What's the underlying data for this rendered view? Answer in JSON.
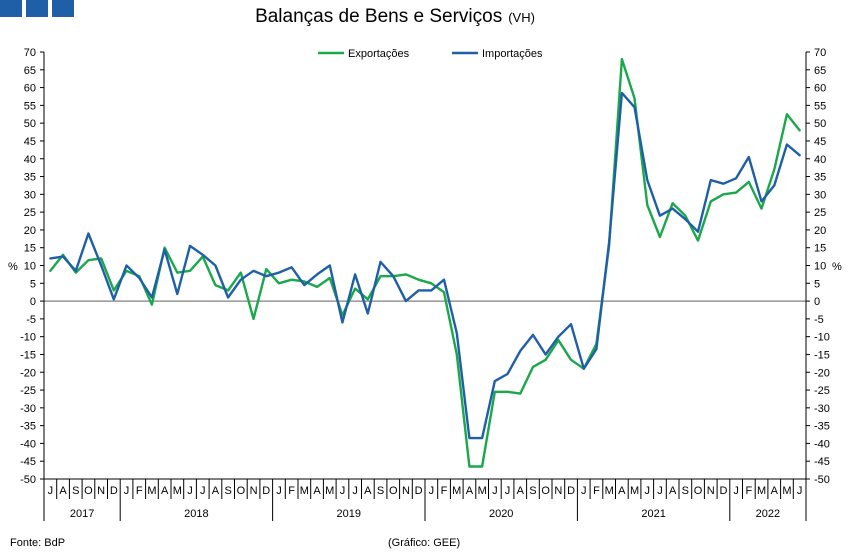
{
  "title": "Balanças de Bens e Serviços",
  "subtitle": "(VH)",
  "footer": {
    "source": "Fonte: BdP",
    "credit": "(Gráfico: GEE)"
  },
  "chart_data": {
    "type": "line",
    "ylabel_left": "%",
    "ylabel_right": "%",
    "ylim": [
      -50,
      70
    ],
    "ytick_step": 5,
    "grid": false,
    "legend_position": "top-center",
    "month_labels": [
      "J",
      "A",
      "S",
      "O",
      "N",
      "D",
      "J",
      "F",
      "M",
      "A",
      "M",
      "J",
      "J",
      "A",
      "S",
      "O",
      "N",
      "D",
      "J",
      "F",
      "M",
      "A",
      "M",
      "J",
      "J",
      "A",
      "S",
      "O",
      "N",
      "D",
      "J",
      "F",
      "M",
      "A",
      "M",
      "J",
      "J",
      "A",
      "S",
      "O",
      "N",
      "D",
      "J",
      "F",
      "M",
      "A",
      "M",
      "J",
      "J",
      "A",
      "S",
      "O",
      "N",
      "D",
      "J",
      "F",
      "M",
      "A",
      "M",
      "J"
    ],
    "years": [
      {
        "label": "2017",
        "start": 0,
        "count": 6
      },
      {
        "label": "2018",
        "start": 6,
        "count": 12
      },
      {
        "label": "2019",
        "start": 18,
        "count": 12
      },
      {
        "label": "2020",
        "start": 30,
        "count": 12
      },
      {
        "label": "2021",
        "start": 42,
        "count": 12
      },
      {
        "label": "2022",
        "start": 54,
        "count": 6
      }
    ],
    "series": [
      {
        "name": "Exportações",
        "color": "#1aa84a",
        "values": [
          8.5,
          13,
          8,
          11.5,
          12,
          3,
          8.5,
          7,
          -1,
          15,
          8,
          8.5,
          12.5,
          4.5,
          3,
          8,
          -5,
          9,
          5,
          6,
          5.5,
          4,
          6.5,
          -4,
          3.5,
          0.5,
          7,
          7,
          7.5,
          6,
          5,
          2.5,
          -15,
          -46.5,
          -46.5,
          -25.5,
          -25.5,
          -26,
          -18.5,
          -16.5,
          -11,
          -16.5,
          -19,
          -12,
          15.5,
          68,
          57,
          27,
          18,
          27.5,
          24,
          17,
          28,
          30,
          30.5,
          33.5,
          26,
          37,
          52.5,
          48
        ]
      },
      {
        "name": "Importações",
        "color": "#1f5fa8",
        "values": [
          12,
          12.5,
          8.5,
          19,
          10,
          0.5,
          10,
          6.5,
          1,
          14.5,
          2,
          15.5,
          13,
          10,
          1,
          6,
          8.5,
          7,
          8,
          9.5,
          4.5,
          7.5,
          10,
          -6,
          7.5,
          -3.5,
          11,
          7,
          0,
          3,
          3,
          6,
          -9,
          -38.5,
          -38.5,
          -22.5,
          -20.5,
          -14,
          -9.5,
          -15,
          -10,
          -6.5,
          -19,
          -13.5,
          16.5,
          58.5,
          54.5,
          34,
          24,
          26,
          23,
          19.5,
          34,
          33,
          34.5,
          40.5,
          28,
          32.5,
          44,
          41
        ]
      }
    ]
  }
}
